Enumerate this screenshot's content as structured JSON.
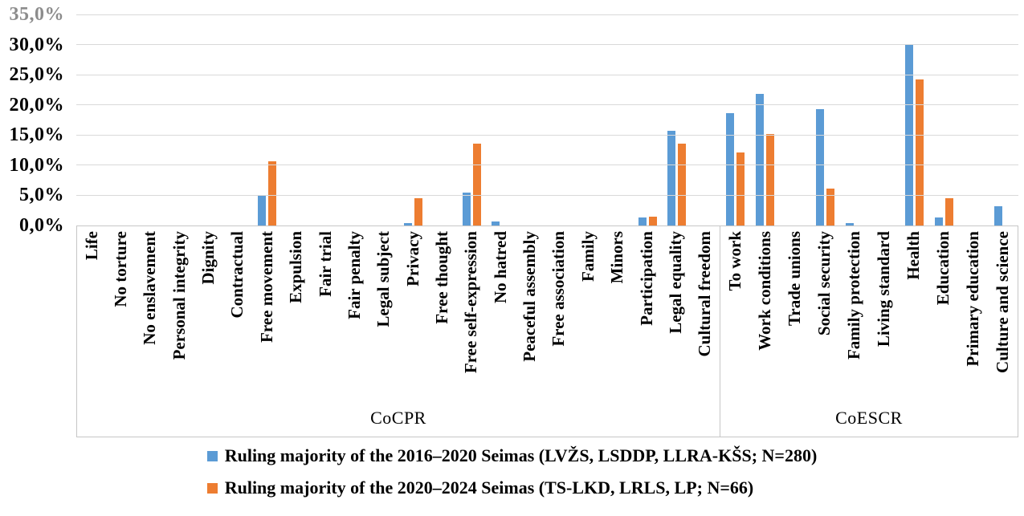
{
  "chart_data": {
    "type": "bar",
    "title": "",
    "xlabel": "",
    "ylabel": "",
    "grid": true,
    "legend_position": "bottom",
    "y_axis": {
      "min": 0,
      "max": 35,
      "step": 5,
      "tick_labels_top_down": [
        "35,0%",
        "30,0%",
        "25,0%",
        "20,0%",
        "15,0%",
        "10,0%",
        "5,0%",
        "0,0%"
      ],
      "tick_values_top_down": [
        35,
        30,
        25,
        20,
        15,
        10,
        5,
        0
      ],
      "top_tick_color": "#8c8c8c"
    },
    "groups": [
      {
        "name": "CoCPR",
        "categories": [
          "Life",
          "No torture",
          "No enslavement",
          "Personal integrity",
          "Dignity",
          "Contractual",
          "Free movement",
          "Expulsion",
          "Fair trial",
          "Fair penalty",
          "Legal subject",
          "Privacy",
          "Free thought",
          "Free self-expression",
          "No hatred",
          "Peaceful assembly",
          "Free association",
          "Family",
          "Minors",
          "Participation",
          "Legal equality",
          "Cultural freedom"
        ]
      },
      {
        "name": "CoESCR",
        "categories": [
          "To work",
          "Work conditions",
          "Trade unions",
          "Social security",
          "Family protection",
          "Living standard",
          "Health",
          "Education",
          "Primary education",
          "Culture and science"
        ]
      }
    ],
    "series": [
      {
        "name": "Ruling majority of the 2016–2020 Seimas (LVŽS, LSDDP, LLRA-KŠS; N=280)",
        "color": "#5B9BD5",
        "values": [
          0,
          0,
          0,
          0,
          0,
          0,
          5.0,
          0,
          0,
          0,
          0,
          0.4,
          0,
          5.4,
          0.7,
          0,
          0,
          0,
          0,
          1.4,
          15.7,
          0,
          18.6,
          21.8,
          0,
          19.3,
          0.4,
          0,
          30.0,
          1.4,
          0,
          3.2
        ]
      },
      {
        "name": "Ruling majority of the 2020–2024 Seimas (TS-LKD, LRLS, LP; N=66)",
        "color": "#ED7D31",
        "values": [
          0,
          0,
          0,
          0,
          0,
          0,
          10.6,
          0,
          0,
          0,
          0,
          4.5,
          0,
          13.6,
          0,
          0,
          0,
          0,
          0,
          1.5,
          13.6,
          0,
          12.1,
          15.2,
          0,
          6.1,
          0,
          0,
          24.2,
          4.5,
          0,
          0
        ]
      }
    ]
  }
}
